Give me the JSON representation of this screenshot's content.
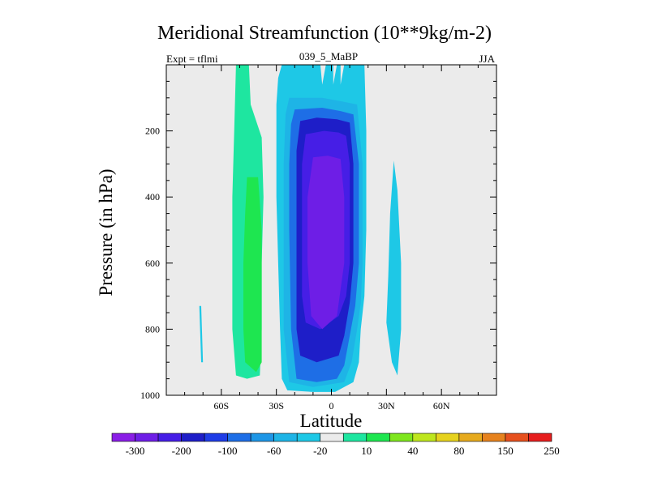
{
  "chart_data": {
    "type": "contour",
    "title": "Meridional Streamfunction (10**9kg/m-2)",
    "left_subtitle": "Expt = tflmi",
    "center_subtitle": "039_5_MaBP",
    "right_subtitle": "JJA",
    "xlabel": "Latitude",
    "ylabel": "Pressure (in hPa)",
    "xlim": [
      -90,
      90
    ],
    "ylim": [
      1000,
      0
    ],
    "x_ticks": [
      {
        "value": -60,
        "label": "60S"
      },
      {
        "value": -30,
        "label": "30S"
      },
      {
        "value": 0,
        "label": "0"
      },
      {
        "value": 30,
        "label": "30N"
      },
      {
        "value": 60,
        "label": "60N"
      }
    ],
    "y_ticks": [
      200,
      400,
      600,
      800,
      1000
    ],
    "colorbar": {
      "colors": [
        "#8a1ee6",
        "#6e1ee6",
        "#461ee6",
        "#1e1ec8",
        "#1e3ce6",
        "#1e6ee6",
        "#1e96e6",
        "#1eb4e6",
        "#1ec8e6",
        "#ebebeb",
        "#1ee6a0",
        "#1ee650",
        "#7ee61e",
        "#bee61e",
        "#e6d21e",
        "#e6aa1e",
        "#e6821e",
        "#e6501e",
        "#e61e1e"
      ],
      "labels": [
        {
          "after_box": 0,
          "text": "-300"
        },
        {
          "after_box": 2,
          "text": "-200"
        },
        {
          "after_box": 4,
          "text": "-100"
        },
        {
          "after_box": 6,
          "text": "-60"
        },
        {
          "after_box": 8,
          "text": "-20"
        },
        {
          "after_box": 10,
          "text": "10"
        },
        {
          "after_box": 12,
          "text": "40"
        },
        {
          "after_box": 14,
          "text": "80"
        },
        {
          "after_box": 16,
          "text": "150"
        },
        {
          "after_box": 18,
          "text": "250"
        }
      ]
    },
    "background_color": "#ebebeb",
    "regions": [
      {
        "name": "southern-cell-outer",
        "level": 10,
        "color": "#1ee6a0",
        "outline": [
          [
            -52,
            0
          ],
          [
            -45,
            0
          ],
          [
            -44,
            120
          ],
          [
            -38,
            220
          ],
          [
            -37,
            400
          ],
          [
            -38,
            600
          ],
          [
            -38,
            800
          ],
          [
            -39,
            940
          ],
          [
            -46,
            950
          ],
          [
            -52,
            940
          ],
          [
            -54,
            800
          ],
          [
            -54,
            600
          ],
          [
            -54,
            400
          ],
          [
            -53,
            200
          ]
        ]
      },
      {
        "name": "southern-cell-inner",
        "level": 40,
        "color": "#1ee650",
        "outline": [
          [
            -46,
            340
          ],
          [
            -40,
            340
          ],
          [
            -38,
            500
          ],
          [
            -38,
            800
          ],
          [
            -38,
            900
          ],
          [
            -41,
            930
          ],
          [
            -47,
            900
          ],
          [
            -48,
            800
          ],
          [
            -48,
            600
          ],
          [
            -47,
            450
          ]
        ]
      },
      {
        "name": "equatorial-cell-l1",
        "level": -20,
        "color": "#1ec8e6",
        "outline": [
          [
            -27,
            0
          ],
          [
            -6,
            0
          ],
          [
            -5,
            60
          ],
          [
            -3,
            0
          ],
          [
            1,
            0
          ],
          [
            1,
            60
          ],
          [
            3,
            0
          ],
          [
            5,
            0
          ],
          [
            5,
            60
          ],
          [
            7,
            0
          ],
          [
            18,
            0
          ],
          [
            19,
            200
          ],
          [
            19,
            500
          ],
          [
            18,
            700
          ],
          [
            16,
            800
          ],
          [
            15,
            900
          ],
          [
            12,
            960
          ],
          [
            2,
            990
          ],
          [
            -10,
            990
          ],
          [
            -24,
            985
          ],
          [
            -27,
            950
          ],
          [
            -28,
            800
          ],
          [
            -29,
            600
          ],
          [
            -30,
            400
          ],
          [
            -30,
            120
          ],
          [
            -29,
            40
          ]
        ]
      },
      {
        "name": "equatorial-cell-l2",
        "level": -60,
        "color": "#1eb4e6",
        "outline": [
          [
            -23,
            100
          ],
          [
            -5,
            100
          ],
          [
            5,
            110
          ],
          [
            14,
            120
          ],
          [
            17,
            300
          ],
          [
            17,
            600
          ],
          [
            16,
            720
          ],
          [
            14,
            800
          ],
          [
            11,
            900
          ],
          [
            7,
            960
          ],
          [
            -10,
            975
          ],
          [
            -23,
            960
          ],
          [
            -26,
            800
          ],
          [
            -26,
            500
          ],
          [
            -26,
            300
          ],
          [
            -25,
            150
          ]
        ]
      },
      {
        "name": "equatorial-cell-l3",
        "level": -100,
        "color": "#1e6ee6",
        "outline": [
          [
            -20,
            135
          ],
          [
            -5,
            130
          ],
          [
            5,
            140
          ],
          [
            12,
            150
          ],
          [
            15,
            300
          ],
          [
            15,
            600
          ],
          [
            13,
            730
          ],
          [
            10,
            820
          ],
          [
            7,
            910
          ],
          [
            3,
            950
          ],
          [
            -8,
            960
          ],
          [
            -19,
            950
          ],
          [
            -22,
            800
          ],
          [
            -23,
            500
          ],
          [
            -23,
            300
          ],
          [
            -22,
            180
          ]
        ]
      },
      {
        "name": "equatorial-cell-l4",
        "level": -150,
        "color": "#1e1ec8",
        "outline": [
          [
            -17,
            170
          ],
          [
            -8,
            160
          ],
          [
            3,
            165
          ],
          [
            10,
            175
          ],
          [
            12,
            300
          ],
          [
            12,
            600
          ],
          [
            10,
            720
          ],
          [
            7,
            820
          ],
          [
            4,
            880
          ],
          [
            -8,
            900
          ],
          [
            -17,
            880
          ],
          [
            -19,
            800
          ],
          [
            -19,
            500
          ],
          [
            -19,
            260
          ]
        ]
      },
      {
        "name": "equatorial-cell-l5",
        "level": -200,
        "color": "#461ee6",
        "outline": [
          [
            -14,
            210
          ],
          [
            -4,
            200
          ],
          [
            4,
            205
          ],
          [
            8,
            215
          ],
          [
            10,
            300
          ],
          [
            10,
            600
          ],
          [
            8,
            700
          ],
          [
            4,
            760
          ],
          [
            -6,
            800
          ],
          [
            -14,
            780
          ],
          [
            -16,
            700
          ],
          [
            -16,
            500
          ],
          [
            -16,
            300
          ]
        ]
      },
      {
        "name": "equatorial-cell-core",
        "level": -300,
        "color": "#6e1ee6",
        "outline": [
          [
            -10,
            280
          ],
          [
            -2,
            275
          ],
          [
            5,
            285
          ],
          [
            7,
            400
          ],
          [
            7,
            600
          ],
          [
            3,
            760
          ],
          [
            -5,
            800
          ],
          [
            -11,
            760
          ],
          [
            -13,
            600
          ],
          [
            -13,
            400
          ]
        ]
      },
      {
        "name": "northern-cell",
        "level": -20,
        "color": "#1ec8e6",
        "outline": [
          [
            34,
            290
          ],
          [
            36,
            380
          ],
          [
            38,
            600
          ],
          [
            38,
            800
          ],
          [
            36,
            940
          ],
          [
            33,
            900
          ],
          [
            30,
            780
          ],
          [
            31,
            640
          ],
          [
            32,
            450
          ]
        ]
      },
      {
        "name": "southern-filament",
        "level": -20,
        "color": "#1ec8e6",
        "outline": [
          [
            -72,
            730
          ],
          [
            -71,
            730
          ],
          [
            -70,
            900
          ],
          [
            -71,
            900
          ]
        ]
      }
    ]
  }
}
